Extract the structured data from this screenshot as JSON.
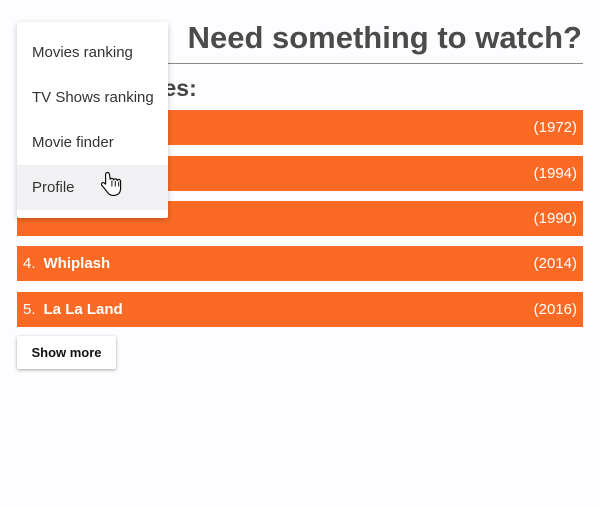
{
  "header": {
    "title": "Need something to watch?"
  },
  "section": {
    "heading": "ranked movies:"
  },
  "movies": [
    {
      "rank": "",
      "title": "",
      "year": "(1972)"
    },
    {
      "rank": "",
      "title": "",
      "year": "(1994)"
    },
    {
      "rank": "",
      "title": "",
      "year": "(1990)"
    },
    {
      "rank": "4.",
      "title": "Whiplash",
      "year": "(2014)"
    },
    {
      "rank": "5.",
      "title": "La La Land",
      "year": "(2016)"
    }
  ],
  "show_more_label": "Show more",
  "menu": {
    "items": [
      {
        "label": "Movies ranking"
      },
      {
        "label": "TV Shows ranking"
      },
      {
        "label": "Movie finder"
      },
      {
        "label": "Profile"
      }
    ],
    "hovered_item": "Profile"
  },
  "colors": {
    "accent": "#fb6a25",
    "background": "#fdfcfe",
    "menu_hover": "#f1f1f3"
  },
  "icons": {
    "cursor": "hand-pointer-icon"
  }
}
